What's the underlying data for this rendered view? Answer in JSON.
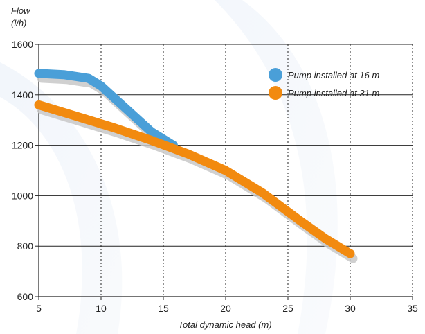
{
  "chart_data": {
    "type": "line",
    "title": "",
    "ylabel_line1": "Flow",
    "ylabel_line2": "(l/h)",
    "xlabel": "Total dynamic head (m)",
    "xlim": [
      5,
      35
    ],
    "ylim": [
      600,
      1600
    ],
    "x_ticks": [
      "5",
      "10",
      "15",
      "20",
      "25",
      "30",
      "35"
    ],
    "y_ticks": [
      "1600",
      "1400",
      "1200",
      "1000",
      "800",
      "600"
    ],
    "x_tick_values": [
      5,
      10,
      15,
      20,
      25,
      30,
      35
    ],
    "y_tick_values": [
      1600,
      1400,
      1200,
      1000,
      800,
      600
    ],
    "grid": true,
    "legend_position": "top-right",
    "series": [
      {
        "name": "Pump installed at 16 m",
        "color": "#4a9fd8",
        "x": [
          5,
          7,
          9,
          10,
          12,
          14,
          15.8
        ],
        "y": [
          1485,
          1480,
          1465,
          1435,
          1345,
          1255,
          1200
        ]
      },
      {
        "name": "Pump installed at 31 m",
        "color": "#f28a0f",
        "x": [
          5,
          8,
          11,
          14,
          17,
          20,
          23,
          26,
          28,
          30
        ],
        "y": [
          1360,
          1315,
          1270,
          1220,
          1165,
          1100,
          1010,
          900,
          830,
          770
        ]
      }
    ],
    "shadow_color": "#c8c8c8"
  }
}
